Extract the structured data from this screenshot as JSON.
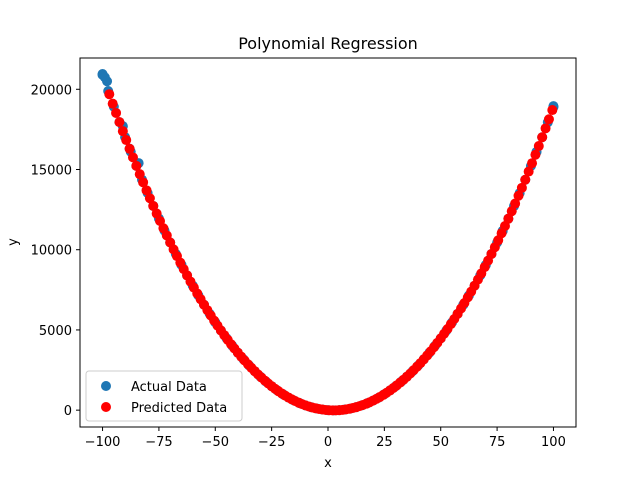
{
  "chart_data": {
    "type": "scatter",
    "title": "Polynomial Regression",
    "xlabel": "x",
    "ylabel": "y",
    "xlim": [
      -110,
      110
    ],
    "ylim": [
      -1050,
      21950
    ],
    "x_ticks": [
      -100,
      -75,
      -50,
      -25,
      0,
      25,
      50,
      75,
      100
    ],
    "y_ticks": [
      0,
      5000,
      10000,
      15000,
      20000
    ],
    "grid": false,
    "legend": "lower-left",
    "series": [
      {
        "name": "Actual Data",
        "color": "#1f77b4",
        "model": {
          "a": 1.99,
          "b": -10.0,
          "c": 0,
          "x_range": [
            -100,
            100
          ],
          "step": 2.5
        },
        "extra_points": [
          [
            -100,
            20950
          ],
          [
            -99,
            20750
          ],
          [
            -98,
            20500
          ],
          [
            -91,
            17700
          ],
          [
            -88,
            16300
          ],
          [
            -84,
            15400
          ],
          [
            100,
            18950
          ]
        ]
      },
      {
        "name": "Predicted Data",
        "color": "#ff0000",
        "model": {
          "a": 1.99,
          "b": -10.0,
          "c": 0,
          "x_range": [
            -97,
            100
          ],
          "step": 1.5
        }
      }
    ]
  }
}
